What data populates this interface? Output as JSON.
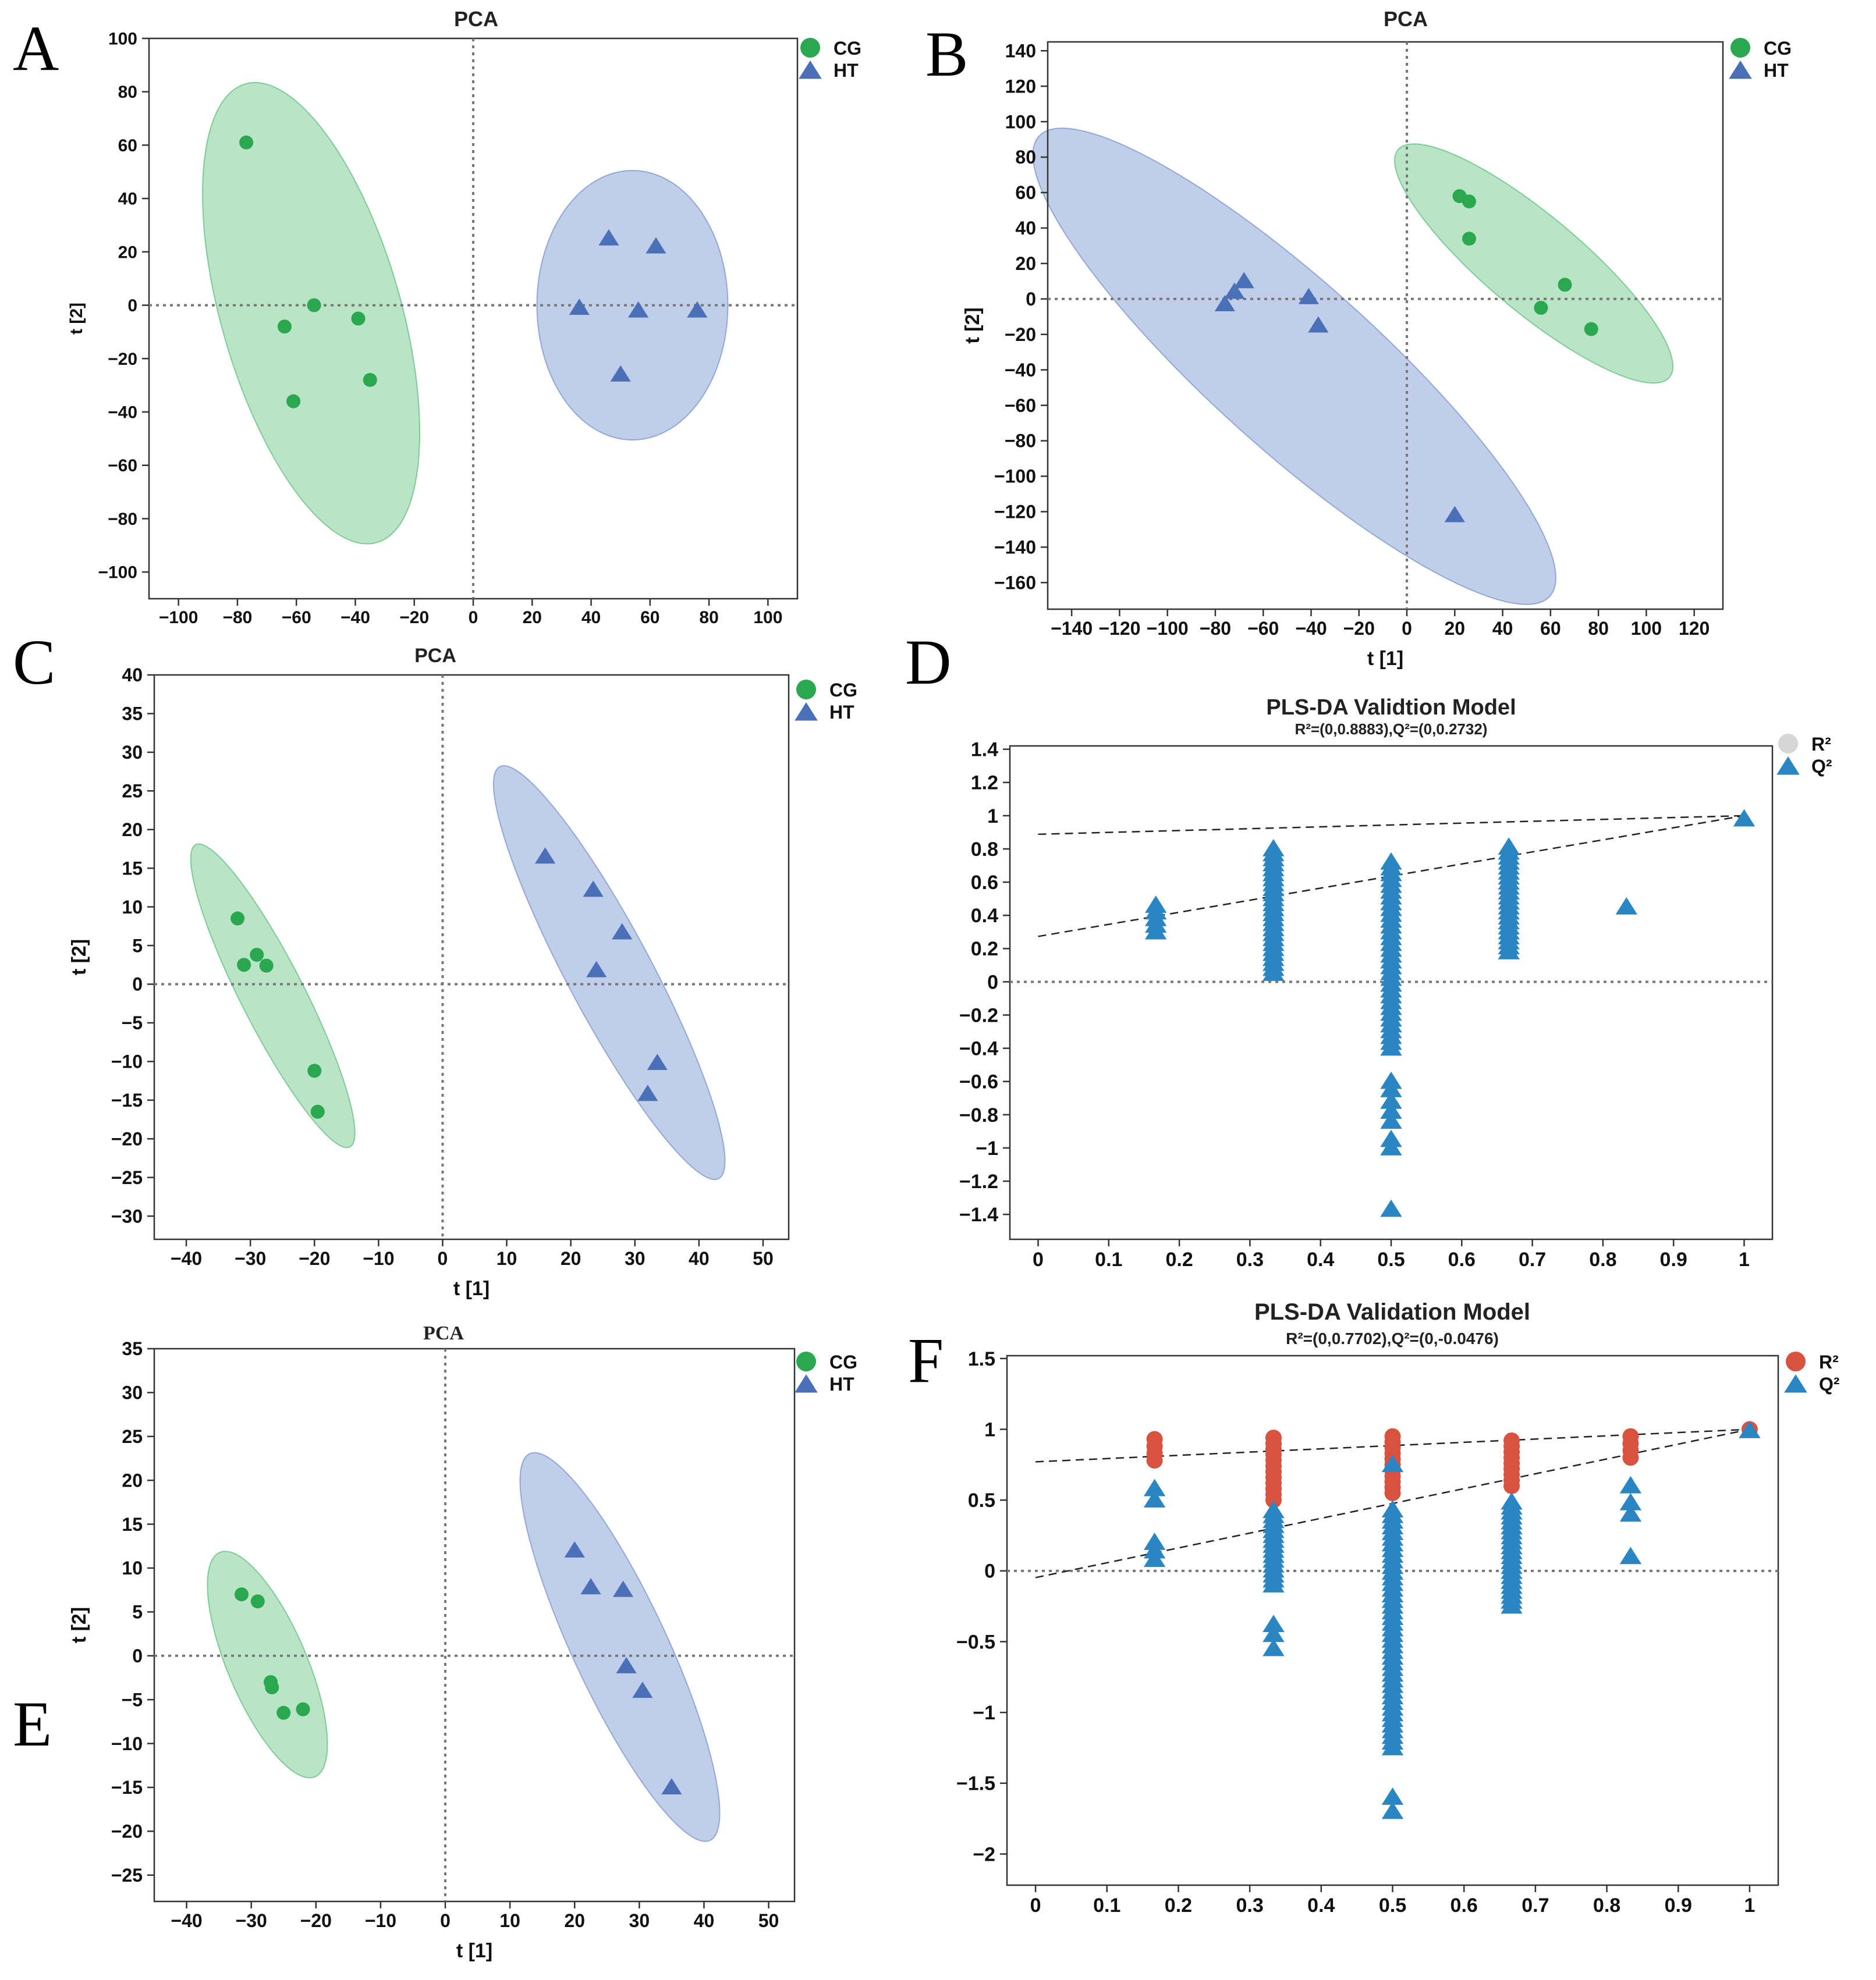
{
  "colors": {
    "green": "#2aa84f",
    "green_fill": "#7fce97",
    "blue": "#4a70b8",
    "blue_fill": "#8ea6d8",
    "q_blue": "#2a86c2",
    "r_red": "#d9513f",
    "r_gray": "#d6d6d6"
  },
  "chart_data": [
    {
      "id": "A",
      "panel_label": "A",
      "type": "scatter",
      "title": "PCA",
      "xlabel": "",
      "ylabel": "t [2]",
      "xlim": [
        -110,
        110
      ],
      "ylim": [
        -110,
        100
      ],
      "xticks": [
        -100,
        -80,
        -60,
        -40,
        -20,
        0,
        20,
        40,
        60,
        80,
        100
      ],
      "yticks": [
        -100,
        -80,
        -60,
        -40,
        -20,
        0,
        20,
        40,
        60,
        80,
        100
      ],
      "legend": [
        "CG",
        "HT"
      ],
      "series": [
        {
          "name": "CG",
          "marker": "circle",
          "points": [
            [
              -77,
              61
            ],
            [
              -64,
              -8
            ],
            [
              -54,
              0
            ],
            [
              -39,
              -5
            ],
            [
              -35,
              -28
            ],
            [
              -61,
              -36
            ]
          ]
        },
        {
          "name": "HT",
          "marker": "triangle",
          "points": [
            [
              46,
              25
            ],
            [
              62,
              22
            ],
            [
              36,
              -1
            ],
            [
              56,
              -2
            ],
            [
              76,
              -2
            ],
            [
              50,
              -26
            ]
          ]
        }
      ],
      "ellipses": [
        {
          "name": "CG",
          "cx": -55,
          "cy": -3,
          "rx": 85,
          "ry": 32,
          "angle": -74
        },
        {
          "name": "HT",
          "cx": 54,
          "cy": 0,
          "rx": 34,
          "ry": 48,
          "angle": 0
        }
      ]
    },
    {
      "id": "B",
      "panel_label": "B",
      "type": "scatter",
      "title": "PCA",
      "xlabel": "t [1]",
      "ylabel": "t [2]",
      "xlim": [
        -150,
        132
      ],
      "ylim": [
        -175,
        145
      ],
      "xticks": [
        -140,
        -120,
        -100,
        -80,
        -60,
        -40,
        -20,
        0,
        20,
        40,
        60,
        80,
        100,
        120
      ],
      "yticks": [
        -160,
        -140,
        -120,
        -100,
        -80,
        -60,
        -40,
        -20,
        0,
        20,
        40,
        60,
        80,
        100,
        120,
        140
      ],
      "legend": [
        "CG",
        "HT"
      ],
      "series": [
        {
          "name": "CG",
          "marker": "circle",
          "points": [
            [
              22,
              58
            ],
            [
              26,
              55
            ],
            [
              26,
              34
            ],
            [
              66,
              8
            ],
            [
              56,
              -5
            ],
            [
              77,
              -17
            ]
          ]
        },
        {
          "name": "HT",
          "marker": "triangle",
          "points": [
            [
              -68,
              10
            ],
            [
              -72,
              4
            ],
            [
              -76,
              -3
            ],
            [
              -41,
              1
            ],
            [
              -37,
              -15
            ],
            [
              20,
              -122
            ]
          ]
        }
      ],
      "ellipses": [
        {
          "name": "CG",
          "cx": 53,
          "cy": 20,
          "rx": 85,
          "ry": 23,
          "angle": -40
        },
        {
          "name": "HT",
          "cx": -47,
          "cy": -38,
          "rx": 165,
          "ry": 40,
          "angle": -42
        }
      ]
    },
    {
      "id": "C",
      "panel_label": "C",
      "type": "scatter",
      "title": "PCA",
      "xlabel": "t [1]",
      "ylabel": "t [2]",
      "xlim": [
        -45,
        54
      ],
      "ylim": [
        -33,
        40
      ],
      "xticks": [
        -40,
        -30,
        -20,
        -10,
        0,
        10,
        20,
        30,
        40,
        50
      ],
      "yticks": [
        -30,
        -25,
        -20,
        -15,
        -10,
        -5,
        0,
        5,
        10,
        15,
        20,
        25,
        30,
        35,
        40
      ],
      "legend": [
        "CG",
        "HT"
      ],
      "series": [
        {
          "name": "CG",
          "marker": "circle",
          "points": [
            [
              -32,
              8.5
            ],
            [
              -29,
              3.8
            ],
            [
              -31,
              2.5
            ],
            [
              -27.5,
              2.4
            ],
            [
              -20,
              -11.2
            ],
            [
              -19.5,
              -16.5
            ]
          ]
        },
        {
          "name": "HT",
          "marker": "triangle",
          "points": [
            [
              16,
              16.5
            ],
            [
              23.5,
              12.2
            ],
            [
              28,
              6.7
            ],
            [
              24,
              1.8
            ],
            [
              33.5,
              -10.2
            ],
            [
              32,
              -14.2
            ]
          ]
        }
      ],
      "ellipses": [
        {
          "name": "CG",
          "cx": -26.5,
          "cy": -1.5,
          "rx": 24,
          "ry": 4.5,
          "angle": -63
        },
        {
          "name": "HT",
          "cx": 26,
          "cy": 1.5,
          "rx": 33,
          "ry": 6,
          "angle": -62
        }
      ]
    },
    {
      "id": "D",
      "panel_label": "D",
      "type": "scatter",
      "title": "PLS-DA Validtion Model",
      "subtitle": "R²=(0,0.8883),Q²=(0,0.2732)",
      "xlabel": "",
      "ylabel": "",
      "xlim": [
        -0.04,
        1.04
      ],
      "ylim": [
        -1.55,
        1.42
      ],
      "xticks": [
        0,
        0.1,
        0.2,
        0.3,
        0.4,
        0.5,
        0.6,
        0.7,
        0.8,
        0.9,
        1
      ],
      "yticks": [
        -1.4,
        -1.2,
        -1,
        -0.8,
        -0.6,
        -0.4,
        -0.2,
        0,
        0.2,
        0.4,
        0.6,
        0.8,
        1,
        1.2,
        1.4
      ],
      "legend": [
        "R²",
        "Q²"
      ],
      "legend_colors": [
        "#d6d6d6",
        "#2a86c2"
      ],
      "reg_lines": [
        {
          "name": "R2",
          "intercept": 0.8883,
          "end": 1.0
        },
        {
          "name": "Q2",
          "intercept": 0.2732,
          "end": 1.0
        }
      ],
      "q2_groups": [
        {
          "x": 0.1667,
          "min": 0.3,
          "max": 0.47,
          "step": 0.04
        },
        {
          "x": 0.3333,
          "min": 0.05,
          "max": 0.82,
          "step": 0.03
        },
        {
          "x": 0.5,
          "min": -0.4,
          "max": 0.74,
          "step": 0.035
        },
        {
          "x": 0.6667,
          "min": 0.18,
          "max": 0.82,
          "step": 0.03
        }
      ],
      "q2_points": [
        [
          0.5,
          -0.6
        ],
        [
          0.5,
          -0.65
        ],
        [
          0.5,
          -0.72
        ],
        [
          0.5,
          -0.78
        ],
        [
          0.5,
          -0.84
        ],
        [
          0.5,
          -0.95
        ],
        [
          0.5,
          -1.0
        ],
        [
          0.5,
          -1.37
        ],
        [
          0.8333,
          0.45
        ],
        [
          1,
          0.98
        ]
      ]
    },
    {
      "id": "E",
      "panel_label": "E",
      "type": "scatter",
      "title": "PCA",
      "xlabel": "t [1]",
      "ylabel": "t [2]",
      "xlim": [
        -45,
        54
      ],
      "ylim": [
        -28,
        35
      ],
      "xticks": [
        -40,
        -30,
        -20,
        -10,
        0,
        10,
        20,
        30,
        40,
        50
      ],
      "yticks": [
        -25,
        -20,
        -15,
        -10,
        -5,
        0,
        5,
        10,
        15,
        20,
        25,
        30,
        35
      ],
      "legend": [
        "CG",
        "HT"
      ],
      "series": [
        {
          "name": "CG",
          "marker": "circle",
          "points": [
            [
              -31.5,
              7
            ],
            [
              -29,
              6.2
            ],
            [
              -27,
              -3
            ],
            [
              -26.8,
              -3.6
            ],
            [
              -25,
              -6.5
            ],
            [
              -22,
              -6.1
            ]
          ]
        },
        {
          "name": "HT",
          "marker": "triangle",
          "points": [
            [
              20,
              12
            ],
            [
              22.5,
              7.8
            ],
            [
              27.5,
              7.5
            ],
            [
              28,
              -1.2
            ],
            [
              30.5,
              -4
            ],
            [
              35,
              -15
            ]
          ]
        }
      ],
      "ellipses": [
        {
          "name": "CG",
          "cx": -27.5,
          "cy": -1,
          "rx": 16,
          "ry": 5.2,
          "angle": -67
        },
        {
          "name": "HT",
          "cx": 27,
          "cy": 1,
          "rx": 28,
          "ry": 6.2,
          "angle": -65
        }
      ]
    },
    {
      "id": "F",
      "panel_label": "F",
      "type": "scatter",
      "title": "PLS-DA Validation Model",
      "subtitle": "R²=(0,0.7702),Q²=(0,-0.0476)",
      "xlabel": "",
      "ylabel": "",
      "xlim": [
        -0.04,
        1.04
      ],
      "ylim": [
        -2.22,
        1.52
      ],
      "xticks": [
        0,
        0.1,
        0.2,
        0.3,
        0.4,
        0.5,
        0.6,
        0.7,
        0.8,
        0.9,
        1
      ],
      "yticks": [
        -2,
        -1.5,
        -1,
        -0.5,
        0,
        0.5,
        1,
        1.5
      ],
      "legend": [
        "R²",
        "Q²"
      ],
      "legend_colors": [
        "#d9513f",
        "#2a86c2"
      ],
      "reg_lines": [
        {
          "name": "R2",
          "intercept": 0.7702,
          "end": 1.0
        },
        {
          "name": "Q2",
          "intercept": -0.0476,
          "end": 1.0
        }
      ],
      "r2_groups": [
        {
          "x": 0.1667,
          "min": 0.78,
          "max": 0.95,
          "step": 0.05
        },
        {
          "x": 0.3333,
          "min": 0.5,
          "max": 0.95,
          "step": 0.04
        },
        {
          "x": 0.5,
          "min": 0.55,
          "max": 0.97,
          "step": 0.04
        },
        {
          "x": 0.6667,
          "min": 0.6,
          "max": 0.95,
          "step": 0.04
        },
        {
          "x": 0.8333,
          "min": 0.8,
          "max": 0.95,
          "step": 0.05
        }
      ],
      "q2_groups": [
        {
          "x": 0.1667,
          "min": 0.08,
          "max": 0.25,
          "step": 0.06
        },
        {
          "x": 0.3333,
          "min": -0.1,
          "max": 0.45,
          "step": 0.035
        },
        {
          "x": 0.5,
          "min": -1.25,
          "max": 0.45,
          "step": 0.04
        },
        {
          "x": 0.6667,
          "min": -0.25,
          "max": 0.5,
          "step": 0.035
        }
      ],
      "q2_points": [
        [
          0.1667,
          0.5
        ],
        [
          0.1667,
          0.58
        ],
        [
          0.3333,
          -0.38
        ],
        [
          0.3333,
          -0.45
        ],
        [
          0.3333,
          -0.55
        ],
        [
          0.5,
          0.75
        ],
        [
          0.5,
          -1.6
        ],
        [
          0.5,
          -1.7
        ],
        [
          0.8333,
          0.1
        ],
        [
          0.8333,
          0.4
        ],
        [
          0.8333,
          0.48
        ],
        [
          0.8333,
          0.6
        ],
        [
          1,
          0.99
        ]
      ],
      "r2_points": [
        [
          1,
          1.0
        ]
      ]
    }
  ]
}
